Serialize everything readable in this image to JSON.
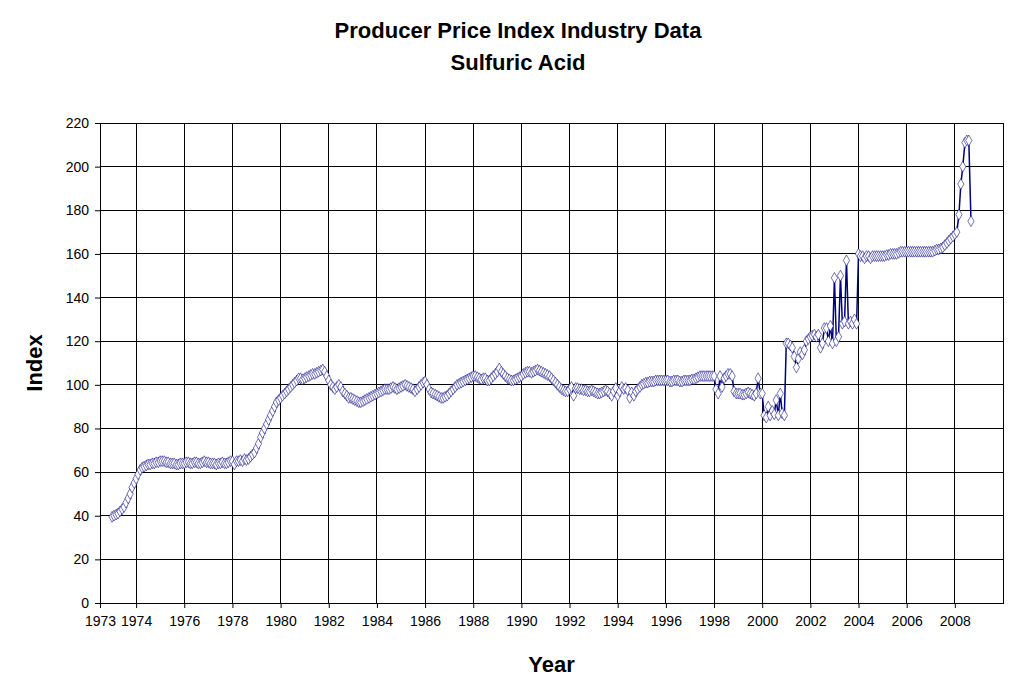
{
  "chart_data": {
    "type": "line",
    "title": "Producer Price Index Industry Data",
    "subtitle": "Sulfuric Acid",
    "x_label": "Year",
    "y_label": "Index",
    "color": "#000080",
    "marker": "diamond",
    "grid": true,
    "xlim": [
      1972.5,
      2010
    ],
    "xticks": [
      {
        "value": 1972.5,
        "label": "1973"
      },
      1974,
      1976,
      1978,
      1980,
      1982,
      1984,
      1986,
      1988,
      1990,
      1992,
      1994,
      1996,
      1998,
      2000,
      2002,
      2004,
      2006,
      2008
    ],
    "ylim": [
      0,
      220
    ],
    "yticks": [
      0,
      20,
      40,
      60,
      80,
      100,
      120,
      140,
      160,
      180,
      200,
      220
    ],
    "x": [
      1973,
      1973.08,
      1973.17,
      1973.25,
      1973.33,
      1973.42,
      1973.5,
      1973.58,
      1973.67,
      1973.75,
      1973.83,
      1973.92,
      1974,
      1974.08,
      1974.17,
      1974.25,
      1974.33,
      1974.42,
      1974.5,
      1974.58,
      1974.67,
      1974.75,
      1974.83,
      1974.92,
      1975,
      1975.08,
      1975.17,
      1975.25,
      1975.33,
      1975.42,
      1975.5,
      1975.58,
      1975.67,
      1975.75,
      1975.83,
      1975.92,
      1976,
      1976.08,
      1976.17,
      1976.25,
      1976.33,
      1976.42,
      1976.5,
      1976.58,
      1976.67,
      1976.75,
      1976.83,
      1976.92,
      1977,
      1977.08,
      1977.17,
      1977.25,
      1977.33,
      1977.42,
      1977.5,
      1977.58,
      1977.67,
      1977.75,
      1977.83,
      1977.92,
      1978,
      1978.08,
      1978.17,
      1978.25,
      1978.33,
      1978.42,
      1978.5,
      1978.58,
      1978.67,
      1978.75,
      1978.83,
      1978.92,
      1979,
      1979.08,
      1979.17,
      1979.25,
      1979.33,
      1979.42,
      1979.5,
      1979.58,
      1979.67,
      1979.75,
      1979.83,
      1979.92,
      1980,
      1980.08,
      1980.17,
      1980.25,
      1980.33,
      1980.42,
      1980.5,
      1980.58,
      1980.67,
      1980.75,
      1980.83,
      1980.92,
      1981,
      1981.08,
      1981.17,
      1981.25,
      1981.33,
      1981.42,
      1981.5,
      1981.58,
      1981.67,
      1981.75,
      1981.83,
      1981.92,
      1982,
      1982.08,
      1982.17,
      1982.25,
      1982.33,
      1982.42,
      1982.5,
      1982.58,
      1982.67,
      1982.75,
      1982.83,
      1982.92,
      1983,
      1983.08,
      1983.17,
      1983.25,
      1983.33,
      1983.42,
      1983.5,
      1983.58,
      1983.67,
      1983.75,
      1983.83,
      1983.92,
      1984,
      1984.08,
      1984.17,
      1984.25,
      1984.33,
      1984.42,
      1984.5,
      1984.58,
      1984.67,
      1984.75,
      1984.83,
      1984.92,
      1985,
      1985.08,
      1985.17,
      1985.25,
      1985.33,
      1985.42,
      1985.5,
      1985.58,
      1985.67,
      1985.75,
      1985.83,
      1985.92,
      1986,
      1986.08,
      1986.17,
      1986.25,
      1986.33,
      1986.42,
      1986.5,
      1986.58,
      1986.67,
      1986.75,
      1986.83,
      1986.92,
      1987,
      1987.08,
      1987.17,
      1987.25,
      1987.33,
      1987.42,
      1987.5,
      1987.58,
      1987.67,
      1987.75,
      1987.83,
      1987.92,
      1988,
      1988.08,
      1988.17,
      1988.25,
      1988.33,
      1988.42,
      1988.5,
      1988.58,
      1988.67,
      1988.75,
      1988.83,
      1988.92,
      1989,
      1989.08,
      1989.17,
      1989.25,
      1989.33,
      1989.42,
      1989.5,
      1989.58,
      1989.67,
      1989.75,
      1989.83,
      1989.92,
      1990,
      1990.08,
      1990.17,
      1990.25,
      1990.33,
      1990.42,
      1990.5,
      1990.58,
      1990.67,
      1990.75,
      1990.83,
      1990.92,
      1991,
      1991.08,
      1991.17,
      1991.25,
      1991.33,
      1991.42,
      1991.5,
      1991.58,
      1991.67,
      1991.75,
      1991.83,
      1991.92,
      1992,
      1992.08,
      1992.17,
      1992.25,
      1992.33,
      1992.42,
      1992.5,
      1992.58,
      1992.67,
      1992.75,
      1992.83,
      1992.92,
      1993,
      1993.08,
      1993.17,
      1993.25,
      1993.33,
      1993.42,
      1993.5,
      1993.58,
      1993.67,
      1993.75,
      1993.83,
      1993.92,
      1994,
      1994.08,
      1994.17,
      1994.25,
      1994.33,
      1994.42,
      1994.5,
      1994.58,
      1994.67,
      1994.75,
      1994.83,
      1994.92,
      1995,
      1995.08,
      1995.17,
      1995.25,
      1995.33,
      1995.42,
      1995.5,
      1995.58,
      1995.67,
      1995.75,
      1995.83,
      1995.92,
      1996,
      1996.08,
      1996.17,
      1996.25,
      1996.33,
      1996.42,
      1996.5,
      1996.58,
      1996.67,
      1996.75,
      1996.83,
      1996.92,
      1997,
      1997.08,
      1997.17,
      1997.25,
      1997.33,
      1997.42,
      1997.5,
      1997.58,
      1997.67,
      1997.75,
      1997.83,
      1997.92,
      1998,
      1998.08,
      1998.17,
      1998.25,
      1998.33,
      1998.42,
      1998.5,
      1998.58,
      1998.67,
      1998.75,
      1998.83,
      1998.92,
      1999,
      1999.08,
      1999.17,
      1999.25,
      1999.33,
      1999.42,
      1999.5,
      1999.58,
      1999.67,
      1999.75,
      1999.83,
      1999.92,
      2000,
      2000.08,
      2000.17,
      2000.25,
      2000.33,
      2000.42,
      2000.5,
      2000.58,
      2000.67,
      2000.75,
      2000.83,
      2000.92,
      2001,
      2001.08,
      2001.17,
      2001.25,
      2001.33,
      2001.42,
      2001.5,
      2001.58,
      2001.67,
      2001.75,
      2001.83,
      2001.92,
      2002,
      2002.08,
      2002.17,
      2002.25,
      2002.33,
      2002.42,
      2002.5,
      2002.58,
      2002.67,
      2002.75,
      2002.83,
      2002.92,
      2003,
      2003.08,
      2003.17,
      2003.25,
      2003.33,
      2003.42,
      2003.5,
      2003.58,
      2003.67,
      2003.75,
      2003.83,
      2003.92,
      2004,
      2004.08,
      2004.17,
      2004.25,
      2004.33,
      2004.42,
      2004.5,
      2004.58,
      2004.67,
      2004.75,
      2004.83,
      2004.92,
      2005,
      2005.08,
      2005.17,
      2005.25,
      2005.33,
      2005.42,
      2005.5,
      2005.58,
      2005.67,
      2005.75,
      2005.83,
      2005.92,
      2006,
      2006.08,
      2006.17,
      2006.25,
      2006.33,
      2006.42,
      2006.5,
      2006.58,
      2006.67,
      2006.75,
      2006.83,
      2006.92,
      2007,
      2007.08,
      2007.17,
      2007.25,
      2007.33,
      2007.42,
      2007.5,
      2007.58,
      2007.67,
      2007.75,
      2007.83,
      2007.92,
      2008,
      2008.08,
      2008.17,
      2008.25,
      2008.33,
      2008.42,
      2008.5,
      2008.58,
      2008.67
    ],
    "values": [
      39.5,
      40,
      40.5,
      41,
      42,
      43,
      44,
      46,
      48,
      50,
      53,
      55,
      57,
      59,
      61,
      62,
      62.5,
      63,
      63.5,
      63.5,
      64,
      64,
      64.5,
      64.5,
      65,
      65,
      65,
      64.5,
      64.5,
      64,
      64,
      64,
      63.5,
      63.5,
      64,
      64,
      64,
      64.5,
      64.5,
      64,
      64,
      64.5,
      64.5,
      64,
      64,
      64.5,
      65,
      64.5,
      64.5,
      64,
      64,
      64,
      63.5,
      64,
      64,
      64.5,
      64,
      64,
      64.5,
      65,
      65,
      63.5,
      65,
      65,
      65.5,
      65,
      66,
      65.5,
      66,
      67,
      68,
      69,
      71,
      73,
      76,
      78,
      80,
      82,
      84,
      86,
      88,
      90,
      92,
      93,
      94,
      95,
      96,
      97,
      98,
      99,
      100,
      101,
      102,
      103,
      103,
      102.5,
      103,
      103.5,
      104,
      104.5,
      105,
      105,
      105.5,
      106,
      106.5,
      107,
      106,
      104,
      102,
      100,
      99,
      98,
      99,
      100,
      99,
      97,
      96,
      95,
      94,
      94,
      93.5,
      93,
      92.5,
      92,
      92,
      92.5,
      93,
      93.5,
      94,
      94.5,
      95,
      95.5,
      96,
      96.5,
      97,
      97.5,
      98,
      98,
      98,
      98.5,
      99,
      98.5,
      98,
      98.5,
      99,
      99.5,
      100,
      99.5,
      99,
      98.5,
      98,
      97,
      98,
      99,
      100,
      101,
      101.5,
      100,
      98,
      96.5,
      96,
      95.5,
      95,
      94.5,
      94,
      94,
      94.5,
      95,
      96,
      97,
      98,
      99,
      100,
      100.5,
      101,
      101.5,
      102,
      102.5,
      103,
      103.5,
      104,
      104,
      103.5,
      103,
      102.5,
      103,
      103,
      102,
      102,
      103,
      104,
      105,
      106,
      107.5,
      106,
      105,
      104,
      103,
      102.5,
      102,
      102,
      102.5,
      103,
      103.5,
      104,
      105,
      105.5,
      106,
      106,
      105.5,
      106,
      106.5,
      107,
      106.5,
      106,
      105.5,
      105,
      104.5,
      104,
      103,
      102,
      101,
      100,
      99,
      98,
      97.5,
      97,
      97,
      98,
      99,
      95,
      98.5,
      98.5,
      98,
      98,
      97.5,
      97.5,
      97,
      97,
      97.5,
      97,
      96.5,
      96,
      96,
      96.5,
      97,
      97.5,
      97,
      96,
      95,
      97,
      98.5,
      95,
      97,
      99,
      98,
      98.5,
      97.5,
      94,
      96.5,
      95,
      97,
      98,
      99,
      100,
      100.5,
      101,
      101,
      101.5,
      101.5,
      101.5,
      102,
      102,
      102,
      102,
      102,
      102,
      102,
      101.5,
      101.5,
      102,
      102,
      102,
      101.5,
      101.5,
      102,
      102,
      102,
      102,
      102.5,
      102.5,
      103,
      103.5,
      104,
      104,
      104,
      104,
      104,
      104,
      104,
      104,
      98,
      96,
      104,
      99,
      103,
      104,
      105,
      105,
      104,
      97,
      96,
      96,
      96,
      95.5,
      95.5,
      96,
      96.5,
      96,
      95.5,
      95,
      96,
      103,
      96,
      96,
      86,
      85,
      90,
      86,
      88,
      86.5,
      93,
      86,
      96,
      87,
      86,
      119,
      119,
      118,
      117,
      113,
      108,
      112,
      115,
      114,
      116,
      120,
      121,
      122,
      122.5,
      123,
      122,
      123,
      117,
      119,
      126,
      126,
      120,
      127,
      119,
      149,
      120,
      122,
      150,
      128,
      129,
      157,
      128,
      129,
      128,
      130,
      128,
      160,
      159,
      159,
      158,
      159,
      159,
      158,
      159,
      159,
      159,
      159,
      159,
      159,
      159,
      159.5,
      159.5,
      160,
      160,
      160,
      160,
      160.5,
      161,
      161,
      161,
      161,
      161,
      161,
      161,
      161,
      161,
      161,
      161,
      161,
      161,
      161,
      161,
      161,
      161,
      161.5,
      162,
      162,
      162.5,
      163,
      164,
      165,
      166,
      167,
      168,
      169,
      170,
      178,
      192,
      200,
      211,
      212,
      212,
      175
    ]
  }
}
